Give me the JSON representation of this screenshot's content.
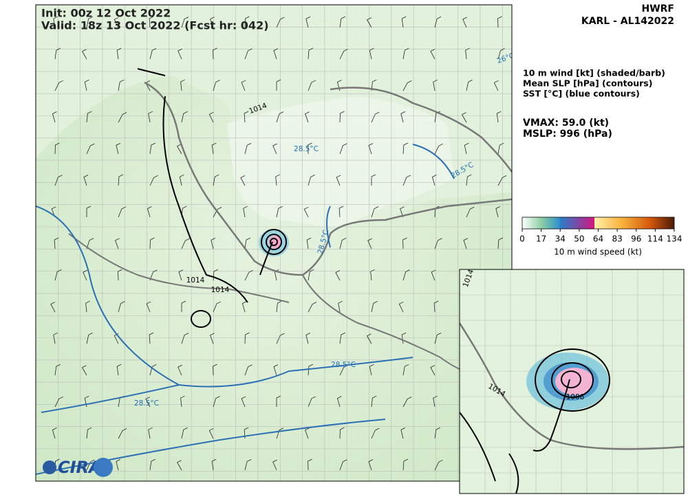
{
  "header": {
    "model": "HWRF",
    "storm": "KARL - AL142022",
    "init": "Init:   00z 12 Oct 2022",
    "valid": "Valid: 18z 13 Oct 2022 (Fcst hr: 042)"
  },
  "legend": {
    "lines": [
      "10 m wind [kt] (shaded/barb)",
      "Mean SLP [hPa] (contours)",
      "SST [°C] (blue contours)"
    ],
    "vmax": "VMAX:  59.0 (kt)",
    "mslp": "MSLP:  996 (hPa)"
  },
  "colorbar": {
    "ticks": [
      0,
      17,
      34,
      50,
      64,
      83,
      96,
      114,
      134
    ],
    "label": "10 m wind speed (kt)"
  },
  "map_labels": [
    "1014",
    "28.5°C",
    "28.5°C",
    "26°C",
    "28.5°C",
    "1014",
    "1014",
    "28.5°C",
    "28.5°C"
  ],
  "inset_labels": [
    "1014",
    "1014",
    "1006"
  ],
  "logo": "CIRA"
}
